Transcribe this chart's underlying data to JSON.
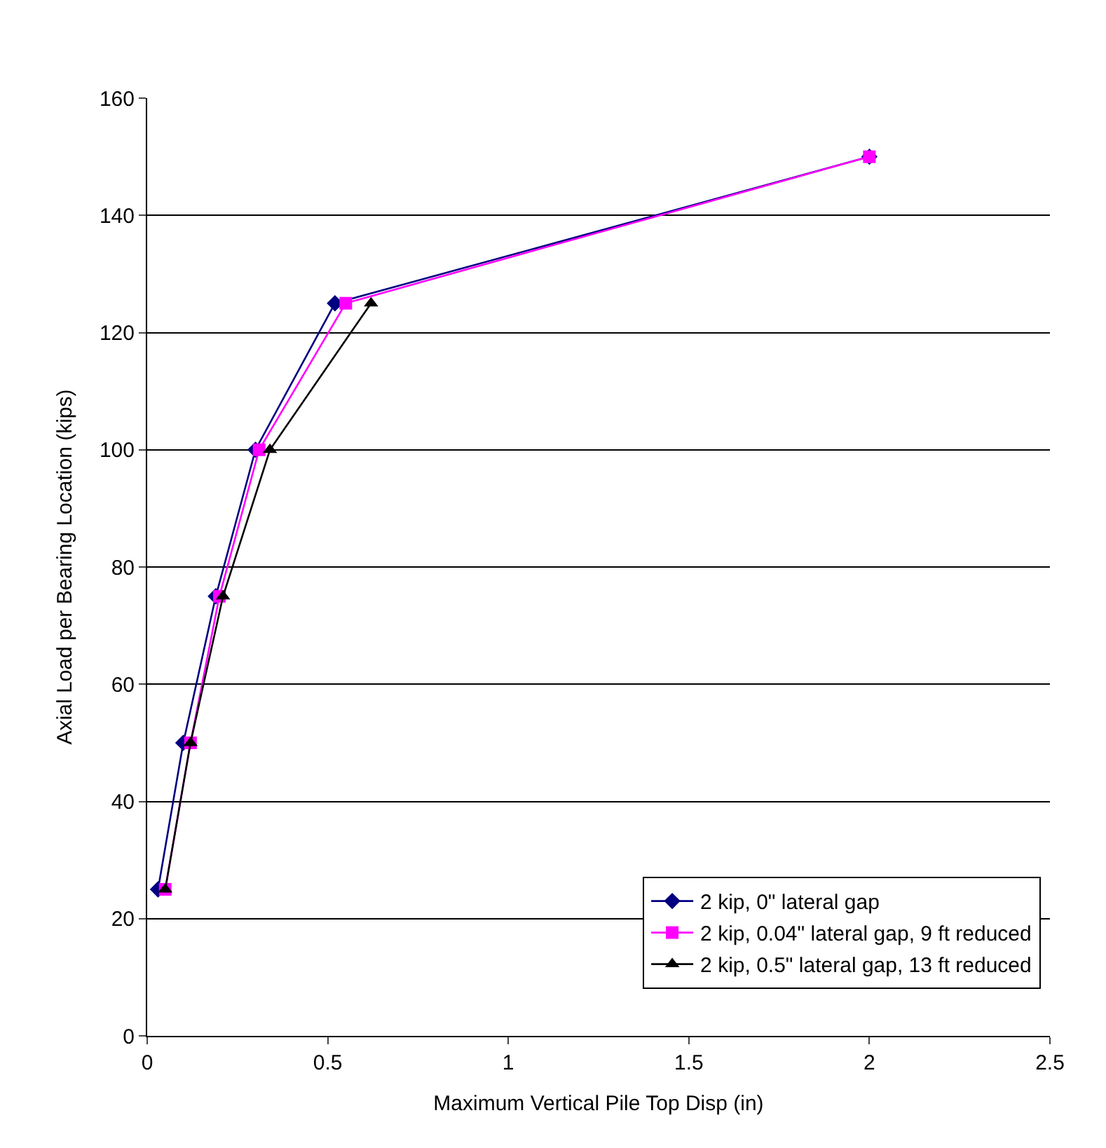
{
  "chart_data": {
    "type": "line",
    "xlabel": "Maximum Vertical Pile Top Disp (in)",
    "ylabel": "Axial Load per Bearing Location (kips)",
    "series": [
      {
        "name": "2 kip, 0\" lateral gap",
        "color": "#000080",
        "marker": "diamond",
        "x": [
          0.03,
          0.1,
          0.19,
          0.3,
          0.52,
          2.0
        ],
        "values": [
          25,
          50,
          75,
          100,
          125,
          150
        ]
      },
      {
        "name": "2 kip, 0.04\" lateral gap, 9 ft reduced",
        "color": "#ff00ff",
        "marker": "square",
        "x": [
          0.05,
          0.12,
          0.2,
          0.31,
          0.55,
          2.0
        ],
        "values": [
          25,
          50,
          75,
          100,
          125,
          150
        ]
      },
      {
        "name": "2 kip, 0.5\" lateral gap, 13 ft reduced",
        "color": "#000000",
        "marker": "triangle",
        "x": [
          0.05,
          0.12,
          0.21,
          0.34,
          0.62
        ],
        "values": [
          25,
          50,
          75,
          100,
          125
        ]
      }
    ],
    "xlim": [
      0,
      2.5
    ],
    "xticks": [
      0,
      0.5,
      1,
      1.5,
      2,
      2.5
    ],
    "ylim": [
      0,
      160
    ],
    "yticks": [
      0,
      20,
      40,
      60,
      80,
      100,
      120,
      140,
      160
    ],
    "grid": "y",
    "legend": "bottom right",
    "line_style": "solid"
  }
}
